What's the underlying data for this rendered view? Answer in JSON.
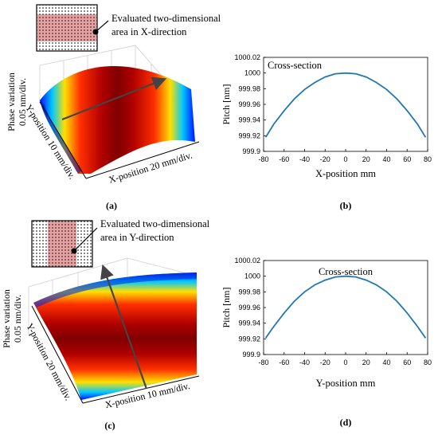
{
  "figure": {
    "panel_labels": [
      "(a)",
      "(b)",
      "(c)",
      "(d)"
    ],
    "surfaces": [
      {
        "inset_callout": [
          "Evaluated two-dimensional",
          "area in X-direction"
        ],
        "z_label": [
          "Phase variation",
          "0.05 nm/div."
        ],
        "y_label": "Y-position 10 mm/div.",
        "x_label": "X-position 20 mm/div."
      },
      {
        "inset_callout": [
          "Evaluated two-dimensional",
          "area in Y-direction"
        ],
        "z_label": [
          "Phase variation",
          "0.05 nm/div."
        ],
        "y_label": "Y-position 20 mm/div.",
        "x_label": "X-position 10 mm/div."
      }
    ],
    "colors": {
      "line": "#1f77b4",
      "surface_peak": "#8b0000",
      "surface_edge": "#0000ff",
      "inset_band": "#e8a0a0"
    }
  },
  "chart_data": [
    {
      "type": "line",
      "title": "Cross-section",
      "xlabel": "X-position mm",
      "ylabel": "Pitch [nm]",
      "xlim": [
        -80,
        80
      ],
      "ylim": [
        999.9,
        1000.02
      ],
      "xticks": [
        "-80",
        "-60",
        "-40",
        "-20",
        "0",
        "20",
        "40",
        "60",
        "80"
      ],
      "yticks": [
        "999.9",
        "999.92",
        "999.94",
        "999.96",
        "999.98",
        "1000",
        "1000.02"
      ],
      "series": [
        {
          "x": [
            -78,
            -70,
            -60,
            -50,
            -40,
            -30,
            -20,
            -10,
            0,
            10,
            20,
            30,
            40,
            50,
            60,
            70,
            78
          ],
          "y": [
            999.918,
            999.935,
            999.952,
            999.967,
            999.979,
            999.988,
            999.995,
            999.999,
            1000.0,
            999.999,
            999.995,
            999.988,
            999.979,
            999.967,
            999.952,
            999.935,
            999.918
          ]
        }
      ]
    },
    {
      "type": "line",
      "title": "Cross-section",
      "xlabel": "Y-position mm",
      "ylabel": "Pitch [nm]",
      "xlim": [
        -80,
        80
      ],
      "ylim": [
        999.9,
        1000.02
      ],
      "xticks": [
        "-80",
        "-60",
        "-40",
        "-20",
        "0",
        "20",
        "40",
        "60",
        "80"
      ],
      "yticks": [
        "999.9",
        "999.92",
        "999.94",
        "999.96",
        "999.98",
        "1000",
        "1000.02"
      ],
      "series": [
        {
          "x": [
            -78,
            -70,
            -60,
            -50,
            -40,
            -30,
            -20,
            -10,
            0,
            10,
            20,
            30,
            40,
            50,
            60,
            70,
            78
          ],
          "y": [
            999.921,
            999.936,
            999.953,
            999.968,
            999.98,
            999.989,
            999.995,
            999.999,
            1000.0,
            999.999,
            999.995,
            999.989,
            999.98,
            999.968,
            999.953,
            999.936,
            999.921
          ]
        }
      ]
    }
  ]
}
